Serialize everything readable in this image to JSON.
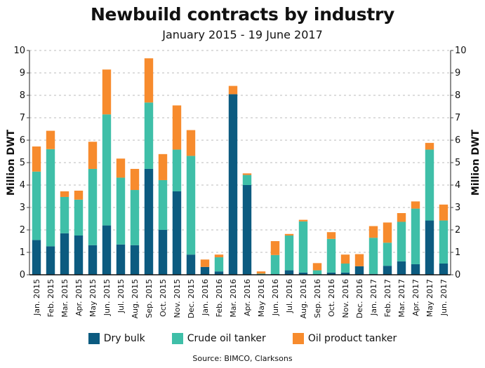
{
  "chart_data": {
    "type": "bar",
    "stacked": true,
    "title": "Newbuild contracts by industry",
    "subtitle": "January 2015 - 19 June 2017",
    "xlabel": "",
    "ylabel": "Million DWT",
    "ylabel_right": "Million DWT",
    "ylim": [
      0,
      10
    ],
    "yticks": [
      "0",
      "1",
      "2",
      "3",
      "4",
      "5",
      "6",
      "7",
      "8",
      "9",
      "10"
    ],
    "grid": true,
    "legend_position": "bottom",
    "source": "Source: BIMCO, Clarksons",
    "categories": [
      "Jan. 2015",
      "Feb. 2015",
      "Mar. 2015",
      "Apr. 2015",
      "May 2015",
      "Jun. 2015",
      "Jul. 2015",
      "Aug. 2015",
      "Sep. 2015",
      "Oct. 2015",
      "Nov. 2015",
      "Dec. 2015",
      "Jan. 2016",
      "Feb. 2016",
      "Mar. 2016",
      "Apr. 2016",
      "May 2016",
      "Jun. 2016",
      "Jul. 2016",
      "Aug. 2016",
      "Sep. 2016",
      "Oct. 2016",
      "Nov. 2016",
      "Dec. 2016",
      "Jan. 2017",
      "Feb. 2017",
      "Mar. 2017",
      "Apr. 2017",
      "May 2017",
      "Jun. 2017"
    ],
    "series": [
      {
        "name": "Dry bulk",
        "color": "#0c5b80",
        "values": [
          1.55,
          1.27,
          1.85,
          1.75,
          1.32,
          2.2,
          1.35,
          1.32,
          4.72,
          2.0,
          3.72,
          0.9,
          0.35,
          0.15,
          8.05,
          4.0,
          0.0,
          0.03,
          0.2,
          0.1,
          0.0,
          0.1,
          0.1,
          0.38,
          0.04,
          0.4,
          0.6,
          0.47,
          2.42,
          0.5
        ]
      },
      {
        "name": "Crude oil tanker",
        "color": "#3fbfa8",
        "values": [
          3.05,
          4.33,
          1.62,
          1.6,
          3.4,
          4.95,
          2.98,
          2.46,
          2.96,
          2.22,
          1.86,
          4.4,
          0.0,
          0.63,
          0.0,
          0.45,
          0.05,
          0.85,
          1.55,
          2.28,
          0.2,
          1.5,
          0.4,
          0.0,
          1.61,
          1.03,
          1.76,
          2.48,
          3.16,
          1.92
        ]
      },
      {
        "name": "Oil product tanker",
        "color": "#f78b2d",
        "values": [
          1.12,
          0.82,
          0.25,
          0.4,
          1.21,
          2.0,
          0.85,
          0.94,
          1.97,
          1.16,
          1.97,
          1.15,
          0.33,
          0.12,
          0.37,
          0.07,
          0.1,
          0.62,
          0.07,
          0.07,
          0.32,
          0.3,
          0.4,
          0.54,
          0.52,
          0.9,
          0.39,
          0.32,
          0.3,
          0.71
        ]
      }
    ]
  }
}
